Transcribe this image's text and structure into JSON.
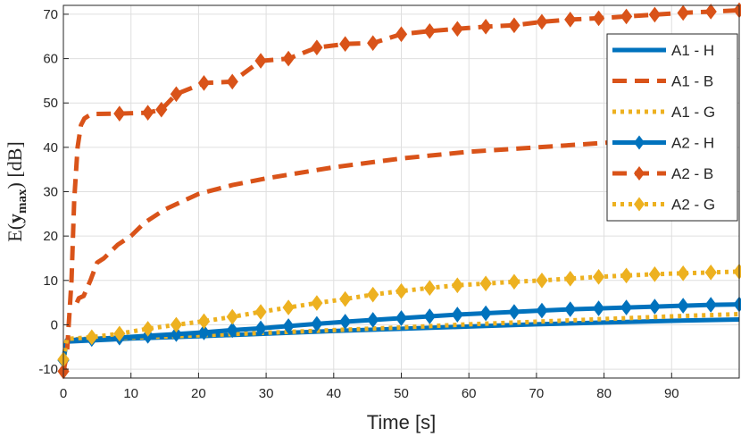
{
  "chart_data": {
    "type": "line",
    "xlabel": "Time [s]",
    "ylabel": {
      "prefix": "E(",
      "bold": "y",
      "sub": "max",
      "suffix": ") [dB]"
    },
    "xlim": [
      0,
      100
    ],
    "ylim": [
      -12,
      72
    ],
    "xticks": [
      0,
      10,
      20,
      30,
      40,
      50,
      60,
      70,
      80,
      90
    ],
    "yticks": [
      -10,
      0,
      10,
      20,
      30,
      40,
      50,
      60,
      70
    ],
    "grid": true,
    "legend_position": "top-right",
    "series": [
      {
        "name": "A1 - H",
        "color": "#0072BD",
        "style": "solid",
        "marker": "none",
        "x": [
          0,
          0.5,
          10,
          20,
          30,
          40,
          50,
          60,
          70,
          80,
          90,
          100
        ],
        "y": [
          -7.5,
          -3.8,
          -3.1,
          -2.6,
          -2.0,
          -1.4,
          -0.9,
          -0.4,
          0.1,
          0.5,
          0.9,
          1.2
        ]
      },
      {
        "name": "A1 - B",
        "color": "#D95319",
        "style": "dashed",
        "marker": "none",
        "x": [
          2,
          2.3,
          3,
          4,
          5,
          6,
          8,
          10,
          12,
          15,
          20,
          25,
          30,
          40,
          50,
          60,
          70,
          80,
          90,
          100
        ],
        "y": [
          5,
          6,
          6.5,
          10,
          14,
          15,
          18,
          20,
          23,
          26,
          29.5,
          31.5,
          33,
          35.5,
          37.5,
          39,
          40,
          41,
          42,
          43
        ]
      },
      {
        "name": "A1 - G",
        "color": "#EDB120",
        "style": "dotted",
        "marker": "none",
        "x": [
          0,
          0.5,
          10,
          20,
          30,
          40,
          50,
          60,
          70,
          80,
          90,
          100
        ],
        "y": [
          -8.5,
          -3.3,
          -2.9,
          -2.4,
          -1.8,
          -1.2,
          -0.6,
          0.1,
          0.7,
          1.3,
          1.9,
          2.4
        ]
      },
      {
        "name": "A2 - H",
        "color": "#0072BD",
        "style": "solid",
        "marker": "diamond",
        "x": [
          0,
          0.5,
          4.2,
          8.3,
          12.5,
          16.7,
          20.8,
          25,
          29.2,
          33.3,
          37.5,
          41.7,
          45.8,
          50,
          54.2,
          58.3,
          62.5,
          66.7,
          70.8,
          75,
          79.2,
          83.3,
          87.5,
          91.7,
          95.8,
          100
        ],
        "y": [
          -8.0,
          -3.5,
          -3.2,
          -2.9,
          -2.5,
          -2.1,
          -1.7,
          -1.2,
          -0.8,
          -0.3,
          0.2,
          0.7,
          1.1,
          1.5,
          1.9,
          2.3,
          2.6,
          2.9,
          3.2,
          3.5,
          3.7,
          3.9,
          4.1,
          4.3,
          4.5,
          4.6
        ]
      },
      {
        "name": "A2 - B",
        "color": "#D95319",
        "style": "dashed",
        "marker": "diamond",
        "x": [
          0,
          0.5,
          1.2,
          1.6,
          2.1,
          2.6,
          3.1,
          3.6,
          4.2,
          8.3,
          12.5,
          14.5,
          16.7,
          20.8,
          25,
          29.2,
          33.3,
          37.5,
          41.7,
          45.8,
          50,
          54.2,
          58.3,
          62.5,
          66.7,
          70.8,
          75,
          79.2,
          83.3,
          87.5,
          91.7,
          95.8,
          100
        ],
        "y": [
          -10.5,
          -7,
          10,
          28,
          40,
          45,
          46.5,
          47,
          47.5,
          47.6,
          47.8,
          48.5,
          52,
          54.5,
          54.8,
          59.5,
          60,
          62.5,
          63.3,
          63.5,
          65.5,
          66.2,
          66.7,
          67.2,
          67.5,
          68.3,
          68.8,
          69.1,
          69.5,
          69.9,
          70.3,
          70.6,
          70.9
        ]
      },
      {
        "name": "A2 - G",
        "color": "#EDB120",
        "style": "dotted",
        "marker": "diamond",
        "x": [
          0,
          0.5,
          4.2,
          8.3,
          12.5,
          16.7,
          20.8,
          25,
          29.2,
          33.3,
          37.5,
          41.7,
          45.8,
          50,
          54.2,
          58.3,
          62.5,
          66.7,
          70.8,
          75,
          79.2,
          83.3,
          87.5,
          91.7,
          95.8,
          100
        ],
        "y": [
          -7.8,
          -3.2,
          -2.8,
          -2.0,
          -0.9,
          0.0,
          0.8,
          1.8,
          2.9,
          3.9,
          4.9,
          5.8,
          6.8,
          7.6,
          8.3,
          8.9,
          9.3,
          9.7,
          10.0,
          10.4,
          10.8,
          11.1,
          11.4,
          11.6,
          11.8,
          12.0
        ]
      }
    ]
  }
}
